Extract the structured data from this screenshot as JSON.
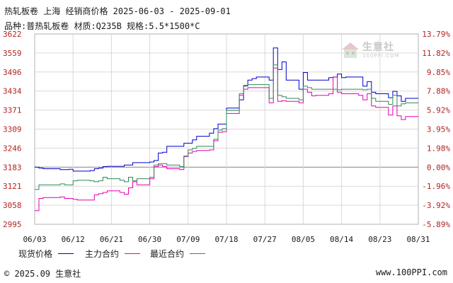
{
  "header": {
    "title": "热轧板卷 上海 经销商价格 2025-06-03 - 2025-09-01",
    "subtitle": "品种:普热轧板卷 材质:Q235B 规格:5.5*1500*C"
  },
  "watermark": {
    "name": "生意社",
    "url": "100PPI.COM"
  },
  "footer": {
    "copyright": "© 2025.09 生意社",
    "website": "www.100PPI.com"
  },
  "colors": {
    "spot": "#0000cc",
    "main_contract": "#e600b4",
    "latest_contract": "#2e8b57",
    "left_axis": "#b22222",
    "right_axis": "#b22222",
    "grid": "#d9d9d9",
    "zero_line": "#808080"
  },
  "chart_data": {
    "type": "line",
    "xlabel": "",
    "ylabel": "",
    "grid": true,
    "legend_position": "bottom-left",
    "y_ticks": [
      "3622",
      "3559",
      "3496",
      "3434",
      "3371",
      "3309",
      "3246",
      "3183",
      "3121",
      "3058",
      "2995"
    ],
    "y2_ticks": [
      "13.79%",
      "11.82%",
      "9.85%",
      "7.88%",
      "5.92%",
      "3.95%",
      "1.98%",
      "0.00%",
      "-1.96%",
      "-3.92%",
      "-5.89%"
    ],
    "ylim": [
      2995,
      3622
    ],
    "x_ticks": [
      "06/03",
      "06/12",
      "06/21",
      "06/30",
      "07/09",
      "07/18",
      "07/27",
      "08/05",
      "08/14",
      "08/23",
      "08/31"
    ],
    "x_start": "2025-06-03",
    "x_end": "2025-09-01",
    "series": [
      {
        "name": "现货价格",
        "color_key": "spot",
        "points": [
          [
            "2025-06-03",
            3183
          ],
          [
            "2025-06-04",
            3180
          ],
          [
            "2025-06-05",
            3178
          ],
          [
            "2025-06-06",
            3178
          ],
          [
            "2025-06-09",
            3175
          ],
          [
            "2025-06-10",
            3175
          ],
          [
            "2025-06-11",
            3176
          ],
          [
            "2025-06-12",
            3170
          ],
          [
            "2025-06-13",
            3170
          ],
          [
            "2025-06-16",
            3172
          ],
          [
            "2025-06-17",
            3178
          ],
          [
            "2025-06-18",
            3180
          ],
          [
            "2025-06-19",
            3185
          ],
          [
            "2025-06-20",
            3186
          ],
          [
            "2025-06-23",
            3186
          ],
          [
            "2025-06-24",
            3190
          ],
          [
            "2025-06-25",
            3190
          ],
          [
            "2025-06-26",
            3198
          ],
          [
            "2025-06-27",
            3198
          ],
          [
            "2025-06-30",
            3200
          ],
          [
            "2025-07-01",
            3205
          ],
          [
            "2025-07-02",
            3230
          ],
          [
            "2025-07-03",
            3232
          ],
          [
            "2025-07-04",
            3252
          ],
          [
            "2025-07-07",
            3252
          ],
          [
            "2025-07-08",
            3262
          ],
          [
            "2025-07-09",
            3262
          ],
          [
            "2025-07-10",
            3273
          ],
          [
            "2025-07-11",
            3285
          ],
          [
            "2025-07-14",
            3295
          ],
          [
            "2025-07-15",
            3310
          ],
          [
            "2025-07-16",
            3325
          ],
          [
            "2025-07-17",
            3325
          ],
          [
            "2025-07-18",
            3378
          ],
          [
            "2025-07-21",
            3405
          ],
          [
            "2025-07-22",
            3452
          ],
          [
            "2025-07-23",
            3470
          ],
          [
            "2025-07-24",
            3475
          ],
          [
            "2025-07-25",
            3480
          ],
          [
            "2025-07-28",
            3470
          ],
          [
            "2025-07-29",
            3576
          ],
          [
            "2025-07-30",
            3505
          ],
          [
            "2025-07-31",
            3530
          ],
          [
            "2025-08-01",
            3470
          ],
          [
            "2025-08-04",
            3440
          ],
          [
            "2025-08-05",
            3495
          ],
          [
            "2025-08-06",
            3470
          ],
          [
            "2025-08-07",
            3470
          ],
          [
            "2025-08-08",
            3470
          ],
          [
            "2025-08-11",
            3478
          ],
          [
            "2025-08-12",
            3480
          ],
          [
            "2025-08-13",
            3490
          ],
          [
            "2025-08-14",
            3478
          ],
          [
            "2025-08-15",
            3480
          ],
          [
            "2025-08-18",
            3480
          ],
          [
            "2025-08-19",
            3450
          ],
          [
            "2025-08-20",
            3465
          ],
          [
            "2025-08-21",
            3430
          ],
          [
            "2025-08-22",
            3425
          ],
          [
            "2025-08-25",
            3412
          ],
          [
            "2025-08-26",
            3433
          ],
          [
            "2025-08-27",
            3418
          ],
          [
            "2025-08-28",
            3400
          ],
          [
            "2025-08-29",
            3410
          ],
          [
            "2025-09-01",
            3410
          ]
        ]
      },
      {
        "name": "主力合约",
        "color_key": "main_contract",
        "points": [
          [
            "2025-06-03",
            3040
          ],
          [
            "2025-06-04",
            3080
          ],
          [
            "2025-06-05",
            3083
          ],
          [
            "2025-06-06",
            3083
          ],
          [
            "2025-06-09",
            3085
          ],
          [
            "2025-06-10",
            3080
          ],
          [
            "2025-06-11",
            3080
          ],
          [
            "2025-06-12",
            3077
          ],
          [
            "2025-06-13",
            3075
          ],
          [
            "2025-06-16",
            3075
          ],
          [
            "2025-06-17",
            3092
          ],
          [
            "2025-06-18",
            3096
          ],
          [
            "2025-06-19",
            3100
          ],
          [
            "2025-06-20",
            3105
          ],
          [
            "2025-06-23",
            3100
          ],
          [
            "2025-06-24",
            3094
          ],
          [
            "2025-06-25",
            3115
          ],
          [
            "2025-06-26",
            3135
          ],
          [
            "2025-06-27",
            3125
          ],
          [
            "2025-06-30",
            3145
          ],
          [
            "2025-07-01",
            3185
          ],
          [
            "2025-07-02",
            3190
          ],
          [
            "2025-07-03",
            3185
          ],
          [
            "2025-07-04",
            3178
          ],
          [
            "2025-07-07",
            3175
          ],
          [
            "2025-07-08",
            3218
          ],
          [
            "2025-07-09",
            3230
          ],
          [
            "2025-07-10",
            3235
          ],
          [
            "2025-07-11",
            3238
          ],
          [
            "2025-07-14",
            3240
          ],
          [
            "2025-07-15",
            3270
          ],
          [
            "2025-07-16",
            3298
          ],
          [
            "2025-07-17",
            3300
          ],
          [
            "2025-07-18",
            3360
          ],
          [
            "2025-07-21",
            3420
          ],
          [
            "2025-07-22",
            3440
          ],
          [
            "2025-07-23",
            3445
          ],
          [
            "2025-07-24",
            3445
          ],
          [
            "2025-07-25",
            3445
          ],
          [
            "2025-07-28",
            3395
          ],
          [
            "2025-07-29",
            3510
          ],
          [
            "2025-07-30",
            3400
          ],
          [
            "2025-07-31",
            3402
          ],
          [
            "2025-08-01",
            3400
          ],
          [
            "2025-08-04",
            3395
          ],
          [
            "2025-08-05",
            3440
          ],
          [
            "2025-08-06",
            3430
          ],
          [
            "2025-08-07",
            3418
          ],
          [
            "2025-08-08",
            3420
          ],
          [
            "2025-08-11",
            3425
          ],
          [
            "2025-08-12",
            3480
          ],
          [
            "2025-08-13",
            3430
          ],
          [
            "2025-08-14",
            3425
          ],
          [
            "2025-08-15",
            3425
          ],
          [
            "2025-08-18",
            3420
          ],
          [
            "2025-08-19",
            3405
          ],
          [
            "2025-08-20",
            3425
          ],
          [
            "2025-08-21",
            3385
          ],
          [
            "2025-08-22",
            3380
          ],
          [
            "2025-08-25",
            3355
          ],
          [
            "2025-08-26",
            3385
          ],
          [
            "2025-08-27",
            3352
          ],
          [
            "2025-08-28",
            3340
          ],
          [
            "2025-08-29",
            3350
          ],
          [
            "2025-09-01",
            3350
          ]
        ]
      },
      {
        "name": "最近合约",
        "color_key": "latest_contract",
        "points": [
          [
            "2025-06-03",
            3110
          ],
          [
            "2025-06-04",
            3125
          ],
          [
            "2025-06-05",
            3125
          ],
          [
            "2025-06-06",
            3125
          ],
          [
            "2025-06-09",
            3128
          ],
          [
            "2025-06-10",
            3125
          ],
          [
            "2025-06-11",
            3125
          ],
          [
            "2025-06-12",
            3138
          ],
          [
            "2025-06-13",
            3140
          ],
          [
            "2025-06-16",
            3138
          ],
          [
            "2025-06-17",
            3135
          ],
          [
            "2025-06-18",
            3138
          ],
          [
            "2025-06-19",
            3150
          ],
          [
            "2025-06-20",
            3145
          ],
          [
            "2025-06-23",
            3140
          ],
          [
            "2025-06-24",
            3135
          ],
          [
            "2025-06-25",
            3150
          ],
          [
            "2025-06-26",
            3138
          ],
          [
            "2025-06-27",
            3145
          ],
          [
            "2025-06-30",
            3150
          ],
          [
            "2025-07-01",
            3190
          ],
          [
            "2025-07-02",
            3195
          ],
          [
            "2025-07-03",
            3195
          ],
          [
            "2025-07-04",
            3190
          ],
          [
            "2025-07-07",
            3185
          ],
          [
            "2025-07-08",
            3220
          ],
          [
            "2025-07-09",
            3240
          ],
          [
            "2025-07-10",
            3245
          ],
          [
            "2025-07-11",
            3252
          ],
          [
            "2025-07-14",
            3252
          ],
          [
            "2025-07-15",
            3275
          ],
          [
            "2025-07-16",
            3305
          ],
          [
            "2025-07-17",
            3310
          ],
          [
            "2025-07-18",
            3370
          ],
          [
            "2025-07-21",
            3425
          ],
          [
            "2025-07-22",
            3450
          ],
          [
            "2025-07-23",
            3455
          ],
          [
            "2025-07-24",
            3455
          ],
          [
            "2025-07-25",
            3455
          ],
          [
            "2025-07-28",
            3410
          ],
          [
            "2025-07-29",
            3520
          ],
          [
            "2025-07-30",
            3420
          ],
          [
            "2025-07-31",
            3415
          ],
          [
            "2025-08-01",
            3410
          ],
          [
            "2025-08-04",
            3405
          ],
          [
            "2025-08-05",
            3450
          ],
          [
            "2025-08-06",
            3445
          ],
          [
            "2025-08-07",
            3440
          ],
          [
            "2025-08-08",
            3440
          ],
          [
            "2025-08-11",
            3440
          ],
          [
            "2025-08-12",
            3440
          ],
          [
            "2025-08-13",
            3438
          ],
          [
            "2025-08-14",
            3440
          ],
          [
            "2025-08-15",
            3440
          ],
          [
            "2025-08-18",
            3440
          ],
          [
            "2025-08-19",
            3438
          ],
          [
            "2025-08-20",
            3440
          ],
          [
            "2025-08-21",
            3410
          ],
          [
            "2025-08-22",
            3400
          ],
          [
            "2025-08-25",
            3390
          ],
          [
            "2025-08-26",
            3420
          ],
          [
            "2025-08-27",
            3385
          ],
          [
            "2025-08-28",
            3392
          ],
          [
            "2025-08-29",
            3395
          ],
          [
            "2025-09-01",
            3395
          ]
        ]
      }
    ]
  }
}
